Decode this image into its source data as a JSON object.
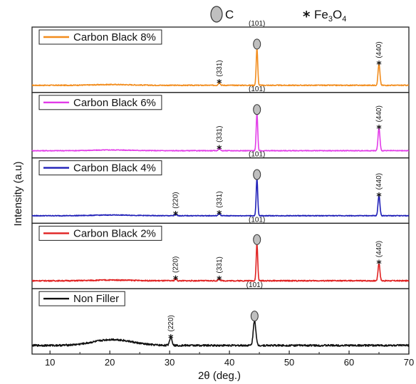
{
  "chart_data": {
    "type": "line",
    "title": "",
    "xlabel": "2θ (deg.)",
    "ylabel": "Intensity (a.u)",
    "xlim": [
      7,
      70
    ],
    "xticks": [
      10,
      20,
      30,
      40,
      50,
      60,
      70
    ],
    "stacked": true,
    "grid": false,
    "key": {
      "carbon_label": "C",
      "fe3o4_prefix": "Fe",
      "fe3o4_sub1": "3",
      "fe3o4_mid": "O",
      "fe3o4_sub2": "4"
    },
    "series": [
      {
        "name": "Carbon Black 8%",
        "color": "#f28c1c",
        "baseline": 0.04,
        "noise": 0.025,
        "peaks": [
          {
            "x": 38.3,
            "h": 0.08,
            "w": 0.22
          },
          {
            "x": 44.6,
            "h": 1.0,
            "w": 0.18
          },
          {
            "x": 65.0,
            "h": 0.58,
            "w": 0.22
          }
        ],
        "annotations": [
          {
            "x": 38.3,
            "marker": "star",
            "hkl": "(331)"
          },
          {
            "x": 44.6,
            "marker": "circle",
            "hkl": "(101)"
          },
          {
            "x": 65.0,
            "marker": "star",
            "hkl": "(440)"
          }
        ]
      },
      {
        "name": "Carbon Black 6%",
        "color": "#e23be8",
        "baseline": 0.04,
        "noise": 0.02,
        "peaks": [
          {
            "x": 38.3,
            "h": 0.07,
            "w": 0.22
          },
          {
            "x": 44.6,
            "h": 1.0,
            "w": 0.18
          },
          {
            "x": 65.0,
            "h": 0.62,
            "w": 0.22
          }
        ],
        "annotations": [
          {
            "x": 38.3,
            "marker": "star",
            "hkl": "(331)"
          },
          {
            "x": 44.6,
            "marker": "circle",
            "hkl": "(101)"
          },
          {
            "x": 65.0,
            "marker": "star",
            "hkl": "(440)"
          }
        ]
      },
      {
        "name": "Carbon Black 4%",
        "color": "#1f1fb8",
        "baseline": 0.05,
        "noise": 0.02,
        "peaks": [
          {
            "x": 31.0,
            "h": 0.04,
            "w": 0.2
          },
          {
            "x": 38.3,
            "h": 0.06,
            "w": 0.22
          },
          {
            "x": 44.6,
            "h": 1.0,
            "w": 0.18
          },
          {
            "x": 65.0,
            "h": 0.55,
            "w": 0.22
          }
        ],
        "annotations": [
          {
            "x": 31.0,
            "marker": "star",
            "hkl": "(220)"
          },
          {
            "x": 38.3,
            "marker": "star",
            "hkl": "(331)"
          },
          {
            "x": 44.6,
            "marker": "circle",
            "hkl": "(101)"
          },
          {
            "x": 65.0,
            "marker": "star",
            "hkl": "(440)"
          }
        ]
      },
      {
        "name": "Carbon Black 2%",
        "color": "#e02020",
        "baseline": 0.06,
        "noise": 0.03,
        "peaks": [
          {
            "x": 31.0,
            "h": 0.06,
            "w": 0.2
          },
          {
            "x": 38.3,
            "h": 0.05,
            "w": 0.22
          },
          {
            "x": 44.6,
            "h": 1.0,
            "w": 0.18
          },
          {
            "x": 65.0,
            "h": 0.48,
            "w": 0.22
          }
        ],
        "annotations": [
          {
            "x": 31.0,
            "marker": "star",
            "hkl": "(220)"
          },
          {
            "x": 38.3,
            "marker": "star",
            "hkl": "(331)"
          },
          {
            "x": 44.6,
            "marker": "circle",
            "hkl": "(101)"
          },
          {
            "x": 65.0,
            "marker": "star",
            "hkl": "(440)"
          }
        ]
      },
      {
        "name": "Non Filler",
        "color": "#111111",
        "baseline": 0.08,
        "noise": 0.05,
        "peaks": [
          {
            "x": 30.2,
            "h": 0.22,
            "w": 0.3
          },
          {
            "x": 44.2,
            "h": 0.68,
            "w": 0.3
          }
        ],
        "annotations": [
          {
            "x": 30.2,
            "marker": "star",
            "hkl": "(220)"
          },
          {
            "x": 44.2,
            "marker": "circle",
            "hkl": "(101)"
          }
        ]
      }
    ]
  }
}
